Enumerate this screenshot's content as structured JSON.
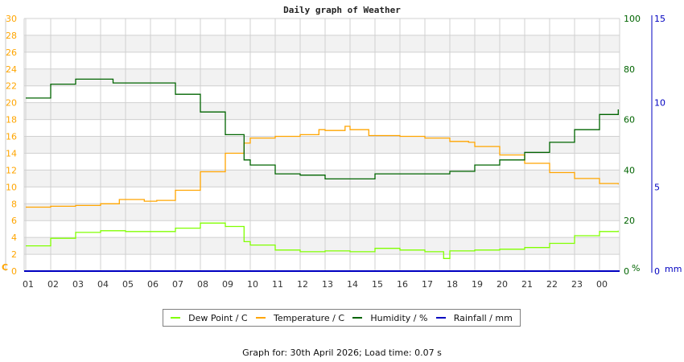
{
  "title": "Daily graph of Weather",
  "footer": "Graph for: 30th April 2026; Load time: 0.07 s",
  "colors": {
    "dew_point": "#80ff00",
    "temperature": "#ffa500",
    "humidity": "#006400",
    "rainfall": "#0000c0",
    "grid": "#d0d0d0",
    "band": "#f2f2f2"
  },
  "legend": [
    {
      "label": "Dew Point / C",
      "color": "#80ff00"
    },
    {
      "label": "Temperature / C",
      "color": "#ffa500"
    },
    {
      "label": "Humidity / %",
      "color": "#006400"
    },
    {
      "label": "Rainfall / mm",
      "color": "#0000c0"
    }
  ],
  "chart_data": {
    "type": "line",
    "title": "Daily graph of Weather",
    "xlabel": "",
    "x_ticks": [
      "01",
      "02",
      "03",
      "04",
      "05",
      "06",
      "07",
      "08",
      "09",
      "10",
      "11",
      "12",
      "13",
      "14",
      "15",
      "16",
      "17",
      "18",
      "19",
      "20",
      "21",
      "22",
      "23",
      "00"
    ],
    "axes": {
      "left": {
        "label": "C",
        "ticks": [
          0,
          2,
          4,
          6,
          8,
          10,
          12,
          14,
          16,
          18,
          20,
          22,
          24,
          26,
          28,
          30
        ],
        "range": [
          0,
          30
        ],
        "color": "#ffa500"
      },
      "right1": {
        "label": "%",
        "ticks": [
          0,
          20,
          40,
          60,
          80,
          100
        ],
        "range": [
          0,
          100
        ],
        "color": "#006400"
      },
      "right2": {
        "label": "mm",
        "ticks": [
          0,
          5,
          10,
          15
        ],
        "range": [
          0,
          15
        ],
        "color": "#0000c0"
      }
    },
    "grid": true,
    "legend_position": "bottom",
    "x_hours": [
      0,
      1,
      2,
      3,
      3.75,
      4.75,
      5.25,
      6,
      7,
      8,
      8.75,
      9,
      10,
      11,
      11.75,
      12,
      12.8,
      13,
      13.75,
      15,
      16,
      17,
      17.75,
      18,
      19,
      20,
      21,
      22,
      23,
      23.75
    ],
    "series": [
      {
        "name": "Dew Point / C",
        "axis": "left",
        "x": [
          0,
          1,
          2,
          3,
          4,
          5,
          6,
          7,
          7.5,
          8,
          8.75,
          9,
          10,
          11,
          12,
          13,
          14,
          15,
          16,
          16.75,
          17,
          18,
          19,
          20,
          21,
          22,
          23,
          23.75
        ],
        "values": [
          3.0,
          3.9,
          4.6,
          4.8,
          4.7,
          4.7,
          5.1,
          5.7,
          5.7,
          5.3,
          3.5,
          3.1,
          2.5,
          2.3,
          2.4,
          2.3,
          2.7,
          2.5,
          2.3,
          1.5,
          2.4,
          2.5,
          2.6,
          2.8,
          3.3,
          4.2,
          4.7,
          4.8
        ]
      },
      {
        "name": "Temperature / C",
        "axis": "left",
        "x": [
          0,
          1,
          2,
          3,
          3.75,
          4.75,
          5.25,
          6,
          7,
          8,
          8.75,
          9,
          10,
          11,
          11.75,
          12,
          12.8,
          13,
          13.75,
          15,
          16,
          17,
          17.75,
          18,
          19,
          20,
          21,
          22,
          23,
          23.75
        ],
        "values": [
          7.6,
          7.7,
          7.8,
          8.0,
          8.5,
          8.3,
          8.4,
          9.6,
          11.8,
          14.0,
          15.2,
          15.8,
          16.0,
          16.2,
          16.8,
          16.7,
          17.2,
          16.8,
          16.1,
          16.0,
          15.8,
          15.4,
          15.3,
          14.8,
          13.8,
          12.8,
          11.7,
          11.0,
          10.4,
          10.3
        ]
      },
      {
        "name": "Humidity / %",
        "axis": "right1",
        "x": [
          0,
          1,
          2,
          3,
          3.5,
          5.5,
          6,
          7,
          8,
          8.75,
          9,
          10,
          11,
          12,
          13,
          14,
          15,
          16,
          17,
          18,
          19,
          20,
          21,
          22,
          23,
          23.75
        ],
        "values": [
          68.5,
          74,
          76,
          76,
          74.5,
          74.5,
          70,
          63,
          54,
          44,
          42,
          38.5,
          38,
          36.5,
          36.5,
          38.5,
          38.5,
          38.5,
          39.5,
          42,
          44,
          47,
          51,
          56,
          62,
          64
        ]
      },
      {
        "name": "Rainfall / mm",
        "axis": "right2",
        "x": [
          0,
          23.75
        ],
        "values": [
          0,
          0
        ]
      }
    ]
  }
}
